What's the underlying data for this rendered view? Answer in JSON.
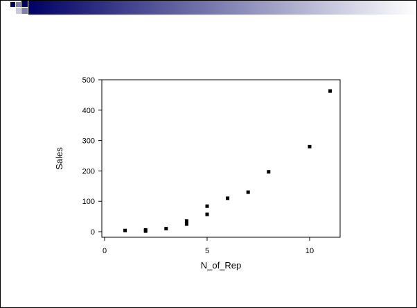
{
  "theme": {
    "bar_dark": "#000066",
    "bar_light": "#ffffff",
    "block_dark": "#000066",
    "block_mid": "#8080b0",
    "block_light": "#c8c8e0"
  },
  "chart_data": {
    "type": "scatter",
    "xlabel": "N_of_Rep",
    "ylabel": "Sales",
    "xlim": [
      0,
      12
    ],
    "ylim": [
      0,
      500
    ],
    "xticks": [
      0,
      5,
      10
    ],
    "yticks": [
      0,
      100,
      200,
      300,
      400,
      500
    ],
    "grid": false,
    "series": [
      {
        "x": [
          1,
          2,
          2,
          3,
          4,
          4,
          5,
          5,
          6,
          7,
          8,
          10,
          11
        ],
        "y": [
          4,
          2,
          6,
          10,
          25,
          35,
          57,
          84,
          110,
          130,
          197,
          280,
          463
        ]
      }
    ]
  }
}
